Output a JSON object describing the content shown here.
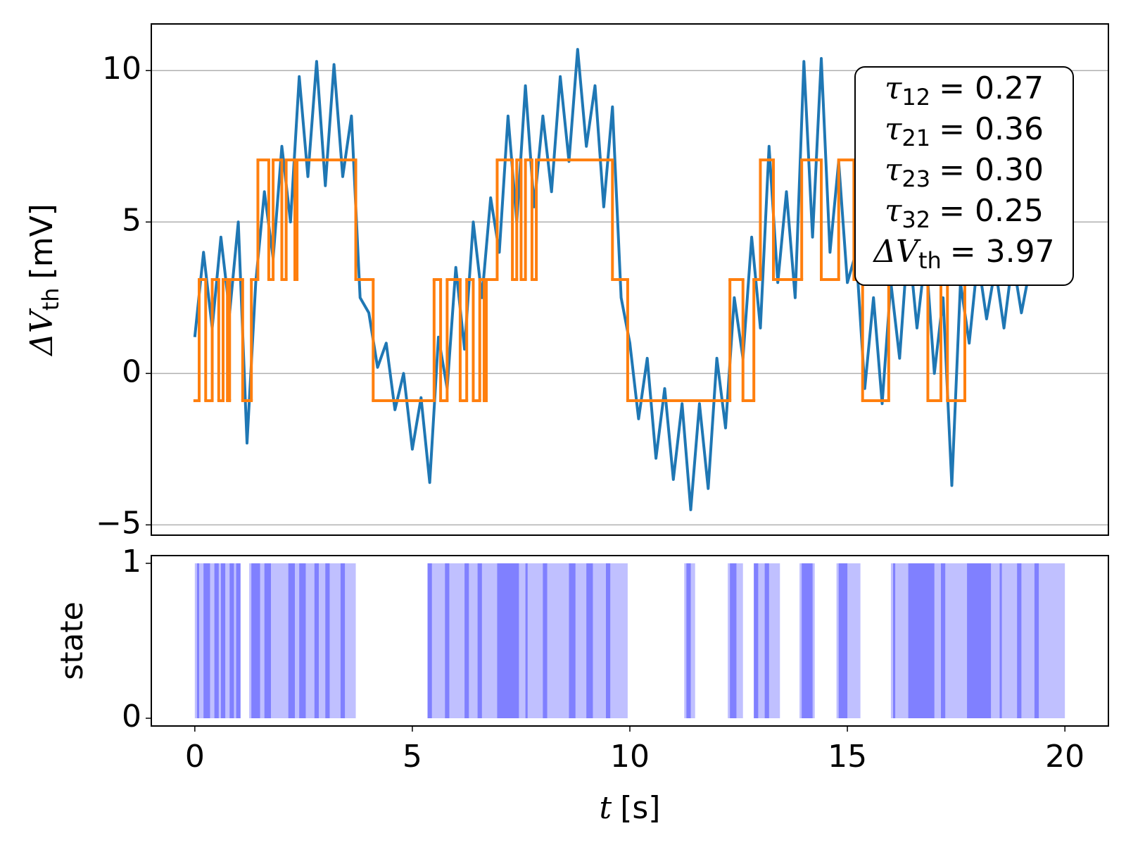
{
  "chart_data": [
    {
      "type": "line",
      "ylabel": {
        "symbol": "ΔV",
        "subscript": "th",
        "text": "[mV]"
      },
      "xlim": [
        -1,
        21
      ],
      "ylim": [
        -5.34,
        11.54
      ],
      "yticks": [
        {
          "value": -5,
          "label": "−5"
        },
        0,
        5,
        10
      ],
      "grid": true,
      "series": [
        {
          "color": "#1f77b4",
          "x": [
            0,
            0.2,
            0.4,
            0.6,
            0.8,
            1.0,
            1.2,
            1.4,
            1.6,
            1.8,
            2.0,
            2.2,
            2.4,
            2.6,
            2.8,
            3.0,
            3.2,
            3.4,
            3.6,
            3.8,
            4.0,
            4.2,
            4.4,
            4.6,
            4.8,
            5.0,
            5.2,
            5.4,
            5.6,
            5.8,
            6.0,
            6.2,
            6.4,
            6.6,
            6.8,
            7.0,
            7.2,
            7.4,
            7.6,
            7.8,
            8.0,
            8.2,
            8.4,
            8.6,
            8.8,
            9.0,
            9.2,
            9.4,
            9.6,
            9.8,
            10.0,
            10.2,
            10.4,
            10.6,
            10.8,
            11.0,
            11.2,
            11.4,
            11.6,
            11.8,
            12.0,
            12.2,
            12.4,
            12.6,
            12.8,
            13.0,
            13.2,
            13.4,
            13.6,
            13.8,
            14.0,
            14.2,
            14.4,
            14.6,
            14.8,
            15.0,
            15.2,
            15.4,
            15.6,
            15.8,
            16.0,
            16.2,
            16.4,
            16.6,
            16.8,
            17.0,
            17.2,
            17.4,
            17.6,
            17.8,
            18.0,
            18.2,
            18.4,
            18.6,
            18.8,
            19.0,
            19.2
          ],
          "values": [
            1.2,
            4.0,
            1.5,
            4.5,
            2.0,
            5.0,
            -2.3,
            3.0,
            6.0,
            3.8,
            7.5,
            5.0,
            9.8,
            6.5,
            10.3,
            6.2,
            10.2,
            6.5,
            8.5,
            2.5,
            2.0,
            0.2,
            1.0,
            -1.2,
            0.0,
            -2.5,
            -0.8,
            -3.6,
            1.2,
            -0.5,
            3.5,
            0.8,
            5.0,
            2.5,
            5.8,
            4.0,
            8.5,
            5.0,
            9.5,
            5.5,
            8.5,
            6.0,
            9.8,
            7.0,
            10.7,
            7.5,
            9.5,
            5.5,
            8.8,
            2.5,
            1.0,
            -1.5,
            0.5,
            -2.8,
            -0.5,
            -3.5,
            -1.0,
            -4.5,
            -1.0,
            -3.8,
            0.5,
            -1.8,
            2.5,
            0.5,
            4.5,
            1.5,
            7.5,
            3.0,
            6.0,
            2.5,
            10.3,
            4.5,
            10.4,
            4.0,
            7.0,
            3.0,
            4.0,
            -0.5,
            2.5,
            -1.0,
            3.0,
            0.5,
            4.5,
            1.5,
            4.0,
            0.0,
            2.5,
            -3.7,
            3.0,
            1.0,
            3.8,
            1.8,
            3.5,
            1.5,
            3.8,
            2.0,
            3.5
          ]
        },
        {
          "color": "#ff7f0e",
          "drawstyle": "steps-post",
          "x": [
            0,
            0.1,
            0.25,
            0.4,
            0.55,
            0.65,
            0.75,
            0.8,
            1.1,
            1.3,
            1.45,
            1.7,
            1.8,
            2.0,
            2.1,
            2.3,
            2.35,
            3.7,
            4.1,
            5.5,
            5.65,
            5.8,
            6.1,
            6.25,
            6.4,
            6.55,
            6.65,
            6.7,
            6.95,
            7.3,
            7.4,
            7.5,
            7.6,
            7.75,
            7.85,
            9.6,
            9.95,
            12.3,
            12.6,
            12.85,
            13.0,
            13.3,
            13.95,
            14.4,
            14.8,
            15.15,
            15.35,
            15.95,
            16.85,
            17.15,
            17.3,
            17.7
          ],
          "values": [
            -0.9,
            3.1,
            -0.9,
            3.1,
            -0.9,
            3.1,
            -0.9,
            3.1,
            -0.9,
            3.1,
            7.05,
            3.1,
            7.05,
            3.1,
            7.05,
            3.1,
            7.05,
            3.1,
            -0.9,
            3.1,
            -0.9,
            3.1,
            -0.9,
            3.1,
            -0.9,
            3.1,
            -0.9,
            3.1,
            7.05,
            3.1,
            7.05,
            3.1,
            7.05,
            3.1,
            7.05,
            3.1,
            -0.9,
            3.1,
            -0.9,
            3.1,
            7.05,
            3.1,
            7.05,
            3.1,
            7.05,
            3.1,
            -0.9,
            3.1,
            -0.9,
            3.1,
            -0.9,
            3.1
          ]
        }
      ],
      "annotations": [
        {
          "symbol": "τ",
          "subscript": "12",
          "text": "= 0.27"
        },
        {
          "symbol": "τ",
          "subscript": "21",
          "text": "= 0.36"
        },
        {
          "symbol": "τ",
          "subscript": "23",
          "text": "= 0.30"
        },
        {
          "symbol": "τ",
          "subscript": "32",
          "text": "= 0.25"
        },
        {
          "symbol": "ΔV",
          "subscript": "th",
          "text": "= 3.97"
        }
      ]
    },
    {
      "type": "span",
      "ylabel": "state",
      "xlabel": {
        "symbol": "t",
        "text": "[s]"
      },
      "xlim": [
        -1,
        21
      ],
      "ylim": [
        -0.05,
        1.05
      ],
      "xticks": [
        0,
        5,
        10,
        15,
        20
      ],
      "yticks": [
        0,
        1
      ],
      "span_y": [
        0,
        1
      ],
      "series": [
        {
          "color": "#c0c0ff",
          "start": [
            0,
            1.25,
            5.35,
            11.25,
            12.25,
            12.85,
            13.9,
            14.75,
            16.0
          ],
          "end": [
            1.05,
            3.7,
            9.95,
            11.5,
            12.6,
            13.45,
            14.25,
            15.3,
            20.0
          ]
        },
        {
          "color": "#8080ff",
          "start": [
            0.05,
            0.2,
            0.45,
            0.6,
            0.8,
            0.95,
            1.3,
            1.6,
            2.15,
            2.4,
            2.75,
            3.0,
            3.35,
            5.35,
            5.75,
            6.2,
            6.5,
            6.95,
            7.6,
            8.0,
            8.6,
            9.0,
            9.45,
            11.3,
            12.3,
            12.85,
            13.1,
            13.95,
            14.8,
            16.05,
            16.4,
            17.15,
            17.75,
            18.5,
            18.9,
            19.3
          ],
          "end": [
            0.1,
            0.35,
            0.55,
            0.7,
            0.9,
            1.05,
            1.5,
            1.75,
            2.3,
            2.55,
            2.85,
            3.1,
            3.45,
            5.45,
            5.85,
            6.3,
            6.6,
            7.45,
            7.65,
            8.1,
            8.75,
            9.15,
            9.55,
            11.4,
            12.45,
            12.95,
            13.2,
            14.2,
            15.0,
            16.1,
            17.0,
            17.25,
            18.3,
            18.55,
            19.0,
            19.4
          ]
        }
      ]
    }
  ]
}
